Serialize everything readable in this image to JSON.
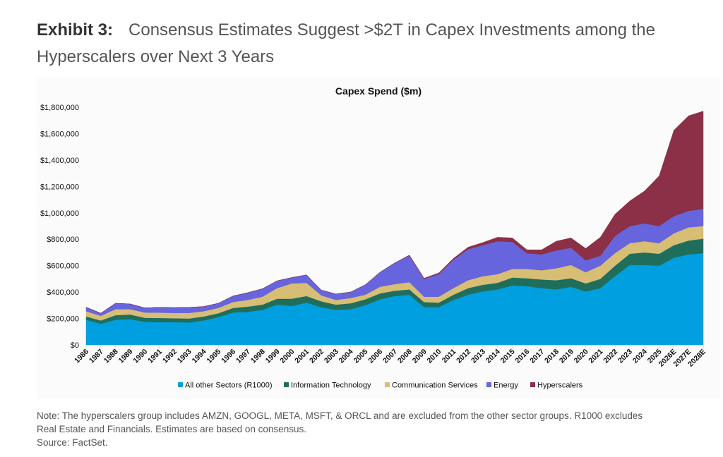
{
  "exhibit": {
    "label": "Exhibit 3:",
    "title": "Consensus Estimates Suggest >$2T in Capex Investments among the Hyperscalers over Next 3 Years"
  },
  "note": {
    "line1": "Note: The hyperscalers group includes AMZN, GOOGL, META, MSFT, & ORCL and are excluded from the other sector groups. R1000 excludes",
    "line2": "Real Estate and Financials. Estimates are based on consensus.",
    "source": "Source: FactSet."
  },
  "chart_data": {
    "type": "area",
    "stacked": true,
    "title": "Capex Spend ($m)",
    "xlabel": "",
    "ylabel": "",
    "ylim": [
      0,
      1800000
    ],
    "yticks": [
      0,
      200000,
      400000,
      600000,
      800000,
      1000000,
      1200000,
      1400000,
      1600000,
      1800000
    ],
    "ytick_labels": [
      "$0",
      "$200,000",
      "$400,000",
      "$600,000",
      "$800,000",
      "$1,000,000",
      "$1,200,000",
      "$1,400,000",
      "$1,600,000",
      "$1,800,000"
    ],
    "grid": false,
    "legend_position": "bottom",
    "categories": [
      "1986",
      "1987",
      "1988",
      "1989",
      "1990",
      "1991",
      "1992",
      "1993",
      "1994",
      "1995",
      "1996",
      "1997",
      "1998",
      "1999",
      "2000",
      "2001",
      "2002",
      "2003",
      "2004",
      "2005",
      "2006",
      "2007",
      "2008",
      "2009",
      "2010",
      "2011",
      "2012",
      "2013",
      "2014",
      "2015",
      "2016",
      "2017",
      "2018",
      "2019",
      "2020",
      "2021",
      "2022",
      "2023",
      "2024",
      "2025",
      "2026E",
      "2027E",
      "2028E"
    ],
    "series": [
      {
        "name": "All other Sectors (R1000)",
        "color": "#009fdf",
        "values": [
          190000,
          160000,
          190000,
          195000,
          175000,
          172000,
          172000,
          170000,
          185000,
          210000,
          245000,
          250000,
          265000,
          305000,
          295000,
          320000,
          285000,
          265000,
          270000,
          300000,
          345000,
          370000,
          380000,
          285000,
          285000,
          340000,
          380000,
          405000,
          420000,
          450000,
          445000,
          430000,
          420000,
          440000,
          405000,
          430000,
          520000,
          605000,
          605000,
          600000,
          660000,
          685000,
          695000
        ]
      },
      {
        "name": "Information Technology",
        "color": "#1f6e5c",
        "values": [
          25000,
          25000,
          35000,
          35000,
          30000,
          32000,
          30000,
          30000,
          30000,
          30000,
          35000,
          40000,
          40000,
          45000,
          55000,
          50000,
          45000,
          40000,
          45000,
          45000,
          45000,
          40000,
          40000,
          40000,
          35000,
          40000,
          50000,
          50000,
          50000,
          60000,
          60000,
          65000,
          70000,
          65000,
          60000,
          70000,
          80000,
          85000,
          95000,
          90000,
          95000,
          105000,
          110000
        ]
      },
      {
        "name": "Communication Services",
        "color": "#d8bd74",
        "values": [
          40000,
          35000,
          45000,
          40000,
          40000,
          40000,
          40000,
          42000,
          40000,
          40000,
          45000,
          50000,
          60000,
          80000,
          115000,
          100000,
          45000,
          35000,
          40000,
          35000,
          50000,
          50000,
          55000,
          40000,
          45000,
          50000,
          60000,
          65000,
          65000,
          65000,
          70000,
          70000,
          90000,
          100000,
          85000,
          100000,
          95000,
          80000,
          85000,
          80000,
          90000,
          100000,
          95000
        ]
      },
      {
        "name": "Energy",
        "color": "#6665dd",
        "values": [
          30000,
          20000,
          45000,
          40000,
          35000,
          40000,
          40000,
          42000,
          35000,
          35000,
          45000,
          55000,
          60000,
          55000,
          45000,
          60000,
          40000,
          45000,
          45000,
          75000,
          110000,
          160000,
          200000,
          135000,
          170000,
          215000,
          235000,
          235000,
          250000,
          205000,
          120000,
          120000,
          135000,
          130000,
          90000,
          75000,
          130000,
          130000,
          135000,
          130000,
          130000,
          125000,
          130000
        ]
      },
      {
        "name": "Hyperscalers",
        "color": "#8b3047",
        "values": [
          0,
          0,
          0,
          0,
          0,
          0,
          0,
          0,
          0,
          0,
          0,
          0,
          0,
          0,
          0,
          0,
          0,
          0,
          0,
          0,
          0,
          0,
          5000,
          5000,
          10000,
          10000,
          15000,
          20000,
          30000,
          30000,
          25000,
          35000,
          70000,
          75000,
          90000,
          140000,
          165000,
          190000,
          245000,
          380000,
          650000,
          720000,
          740000
        ]
      }
    ]
  }
}
